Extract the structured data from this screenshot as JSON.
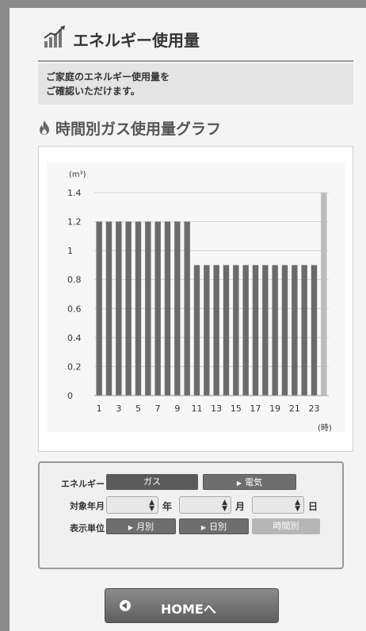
{
  "header": {
    "title": "エネルギー使用量"
  },
  "intro": {
    "line1": "ご家庭のエネルギー使用量を",
    "line2": "ご確認いただけます。"
  },
  "section": {
    "title": "時間別ガス使用量グラフ"
  },
  "chart_data": {
    "type": "bar",
    "unit_label": "(m³)",
    "x_unit_label": "(時)",
    "categories": [
      "1",
      "2",
      "3",
      "4",
      "5",
      "6",
      "7",
      "8",
      "9",
      "10",
      "11",
      "12",
      "13",
      "14",
      "15",
      "16",
      "17",
      "18",
      "19",
      "20",
      "21",
      "22",
      "23",
      "24"
    ],
    "x_tick_labels": [
      "1",
      "3",
      "5",
      "7",
      "9",
      "11",
      "13",
      "15",
      "17",
      "19",
      "21",
      "23"
    ],
    "y_tick_labels": [
      "0",
      "0.2",
      "0.4",
      "0.6",
      "0.8",
      "1",
      "1.2",
      "1.4"
    ],
    "values": [
      1.2,
      1.2,
      1.2,
      1.2,
      1.2,
      1.2,
      1.2,
      1.2,
      1.2,
      1.2,
      0.9,
      0.9,
      0.9,
      0.9,
      0.9,
      0.9,
      0.9,
      0.9,
      0.9,
      0.9,
      0.9,
      0.9,
      0.9,
      1.4
    ],
    "ylim": [
      0,
      1.4
    ],
    "grid": true,
    "bar_color": "#6b6b6b",
    "highlight_color": "#bcbcbc"
  },
  "controls": {
    "energy_label": "エネルギー",
    "gas_button": "ガス",
    "electric_button": "電気",
    "date_label": "対象年月",
    "year_unit": "年",
    "month_unit": "月",
    "day_unit": "日",
    "display_label": "表示単位",
    "monthly_button": "月別",
    "daily_button": "日別",
    "hourly_button": "時間別"
  },
  "home_button": {
    "label": "HOMEへ"
  }
}
